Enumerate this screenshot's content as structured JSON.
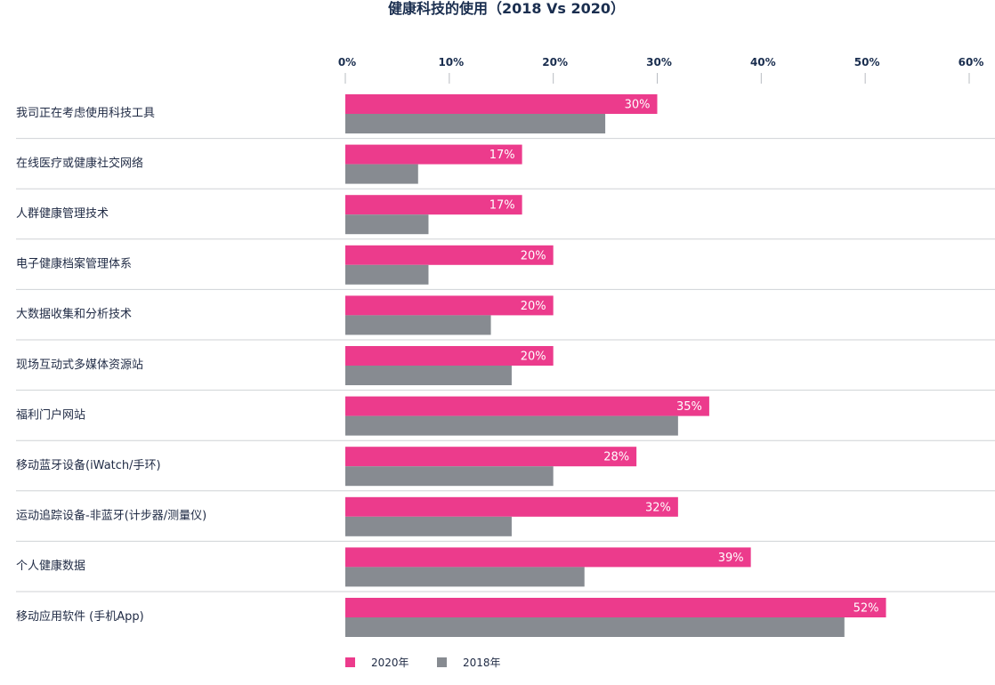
{
  "colors": {
    "series_2020": "#ec3b8c",
    "series_2018": "#878b91",
    "axis_text": "#1a2e4f",
    "separator": "#cfd2d6"
  },
  "chart_data": {
    "type": "bar",
    "orientation": "horizontal",
    "title": "健康科技的使用（2018 Vs 2020）",
    "categories": [
      "我司正在考虑使用科技工具",
      "在线医疗或健康社交网络",
      "人群健康管理技术",
      "电子健康档案管理体系",
      "大数据收集和分析技术",
      "现场互动式多媒体资源站",
      "福利门户网站",
      "移动蓝牙设备(iWatch/手环)",
      "运动追踪设备-非蓝牙(计步器/测量仪)",
      "个人健康数据",
      "移动应用软件 (手机App)"
    ],
    "series": [
      {
        "name": "2020年",
        "values": [
          30,
          17,
          17,
          20,
          20,
          20,
          35,
          28,
          32,
          39,
          52
        ],
        "labels": [
          "30%",
          "17%",
          "17%",
          "20%",
          "20%",
          "20%",
          "35%",
          "28%",
          "32%",
          "39%",
          "52%"
        ]
      },
      {
        "name": "2018年",
        "values": [
          25,
          7,
          8,
          8,
          14,
          16,
          32,
          20,
          16,
          23,
          48
        ]
      }
    ],
    "xlim": [
      0,
      60
    ],
    "xticks": [
      "0%",
      "10%",
      "20%",
      "30%",
      "40%",
      "50%",
      "60%"
    ],
    "xtick_values": [
      0,
      10,
      20,
      30,
      40,
      50,
      60
    ],
    "grid": false,
    "legend_position": "bottom-left"
  }
}
